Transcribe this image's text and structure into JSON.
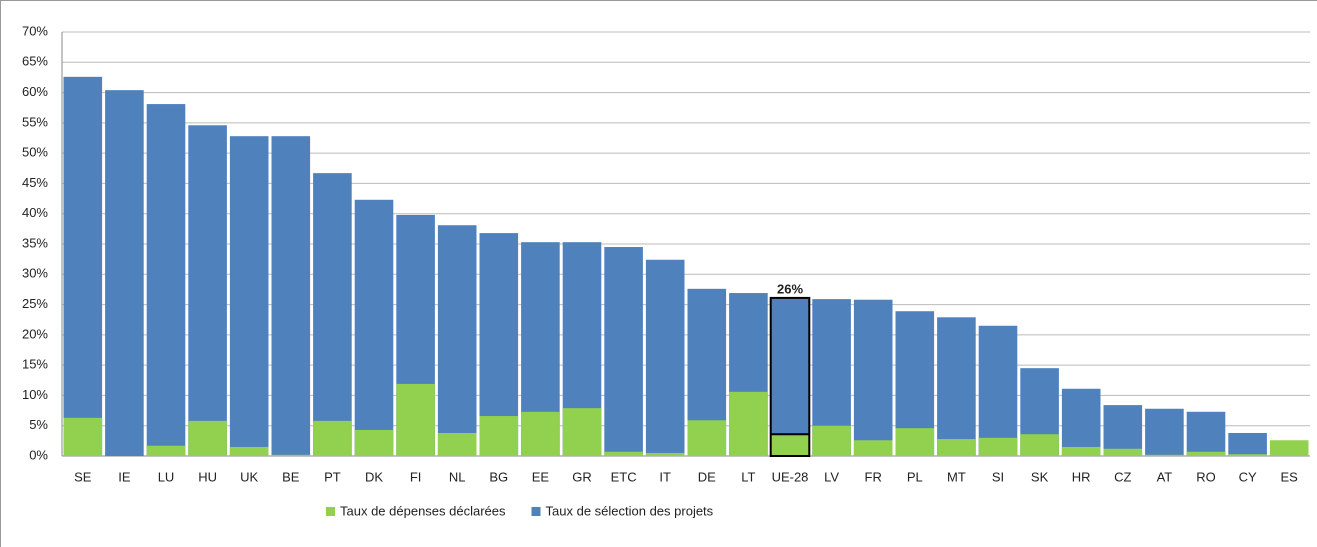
{
  "chart_data": {
    "type": "bar",
    "categories": [
      "SE",
      "IE",
      "LU",
      "HU",
      "UK",
      "BE",
      "PT",
      "DK",
      "FI",
      "NL",
      "BG",
      "EE",
      "GR",
      "ETC",
      "IT",
      "DE",
      "LT",
      "UE-28",
      "LV",
      "FR",
      "PL",
      "MT",
      "SI",
      "SK",
      "HR",
      "CZ",
      "AT",
      "RO",
      "CY",
      "ES"
    ],
    "series": [
      {
        "name": "Taux de sélection des projets",
        "color": "#4f81bd",
        "values": [
          62.6,
          60.4,
          58.1,
          54.6,
          52.8,
          52.8,
          46.7,
          42.3,
          39.8,
          38.1,
          36.8,
          35.3,
          35.3,
          34.5,
          32.4,
          27.6,
          26.9,
          26.1,
          25.9,
          25.8,
          23.9,
          22.9,
          21.5,
          14.5,
          11.1,
          8.4,
          7.8,
          7.3,
          3.8,
          null
        ],
        "value_labels": [
          null,
          null,
          null,
          null,
          null,
          null,
          null,
          null,
          null,
          null,
          null,
          null,
          null,
          null,
          null,
          null,
          null,
          "26%",
          null,
          null,
          null,
          null,
          null,
          null,
          null,
          null,
          null,
          null,
          null,
          null
        ]
      },
      {
        "name": "Taux de dépenses déclarées",
        "color": "#92d050",
        "values": [
          6.3,
          0,
          1.7,
          5.8,
          1.5,
          0.2,
          5.8,
          4.3,
          11.9,
          3.8,
          6.6,
          7.3,
          7.9,
          0.7,
          0.5,
          5.9,
          10.6,
          3.6,
          5.0,
          2.6,
          4.6,
          2.8,
          3.0,
          3.6,
          1.5,
          1.2,
          0.2,
          0.7,
          0.3,
          2.6
        ]
      }
    ],
    "highlight_category": "UE-28",
    "overlap": true,
    "ylim": [
      0,
      70
    ],
    "yticks": [
      {
        "value": 0,
        "label": "0%"
      },
      {
        "value": 5,
        "label": "5%"
      },
      {
        "value": 10,
        "label": "10%"
      },
      {
        "value": 15,
        "label": "15%"
      },
      {
        "value": 20,
        "label": "20%"
      },
      {
        "value": 25,
        "label": "25%"
      },
      {
        "value": 30,
        "label": "30%"
      },
      {
        "value": 35,
        "label": "35%"
      },
      {
        "value": 40,
        "label": "40%"
      },
      {
        "value": 45,
        "label": "45%"
      },
      {
        "value": 50,
        "label": "50%"
      },
      {
        "value": 55,
        "label": "55%"
      },
      {
        "value": 60,
        "label": "60%"
      },
      {
        "value": 65,
        "label": "65%"
      },
      {
        "value": 70,
        "label": "70%"
      }
    ],
    "grid": true,
    "legend_order": [
      1,
      0
    ]
  }
}
